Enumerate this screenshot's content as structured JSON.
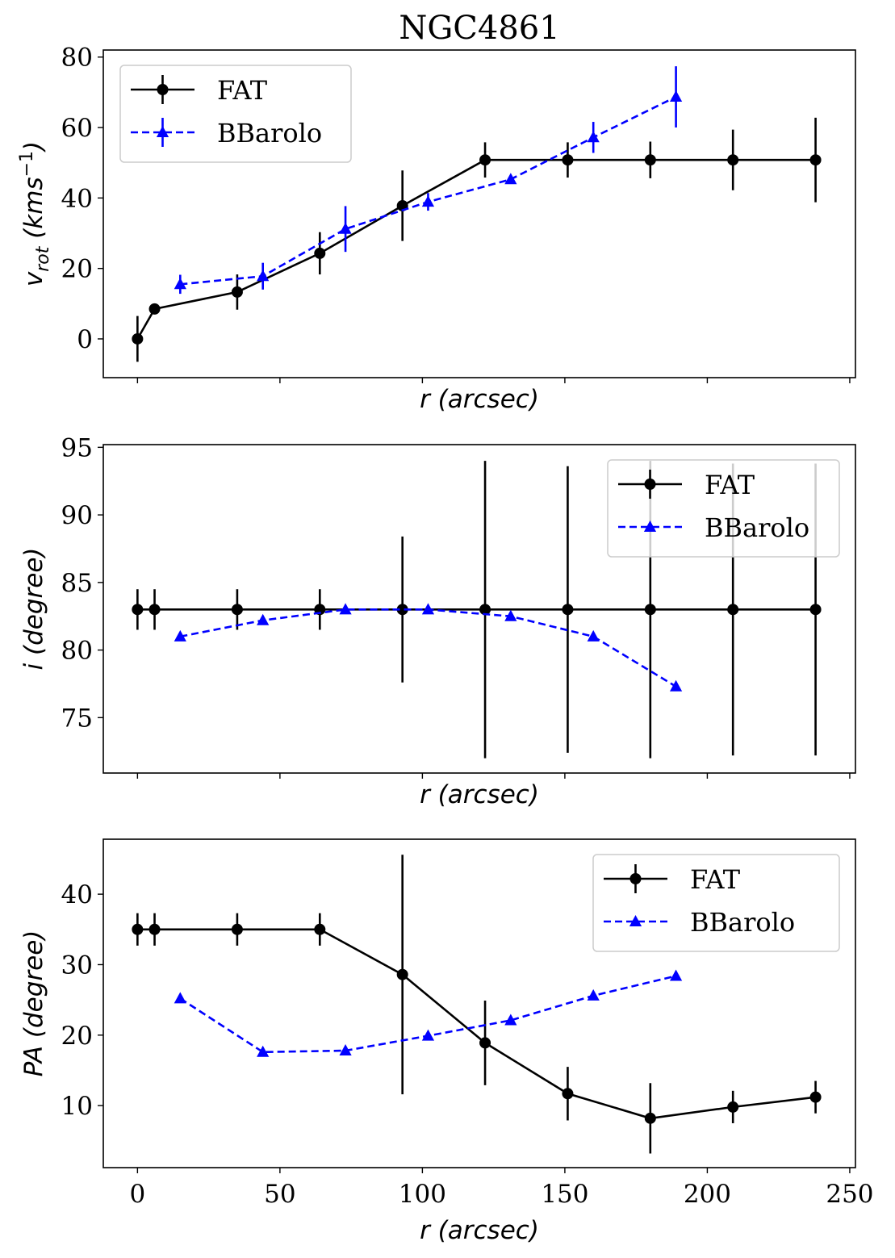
{
  "title": "NGC4861",
  "colors": {
    "fat": "#000000",
    "bbarolo": "#0000ff",
    "legend_border": "#cccccc"
  },
  "legend_labels": {
    "fat": "FAT",
    "bbarolo": "BBarolo"
  },
  "chart_data": [
    {
      "type": "line",
      "title": "NGC4861",
      "xlabel": "r (arcsec)",
      "ylabel": "v_rot (kms^-1)",
      "ylabel_parts": {
        "main": "v",
        "sub": "rot",
        "rest": " (kms",
        "sup": "−1",
        "close": ")"
      },
      "xlabel_parts": {
        "var": "r",
        "rest": " (arcsec)"
      },
      "xlim": [
        -12,
        252
      ],
      "ylim": [
        -11,
        82
      ],
      "xticks": [
        0,
        50,
        100,
        150,
        200,
        250
      ],
      "xtick_labels_visible": false,
      "yticks": [
        0,
        20,
        40,
        60,
        80
      ],
      "ytick_labels": [
        "0",
        "20",
        "40",
        "60",
        "80"
      ],
      "legend": "top-left",
      "grid": false,
      "series": [
        {
          "name": "FAT",
          "style": "solid",
          "marker": "circle",
          "x": [
            0,
            6,
            35,
            64,
            93,
            122,
            151,
            180,
            209,
            238
          ],
          "y": [
            0,
            8.5,
            13.3,
            24.3,
            37.8,
            50.8,
            50.8,
            50.8,
            50.8,
            50.8
          ],
          "err": [
            6.5,
            0,
            5,
            6,
            10,
            5,
            5,
            5.2,
            8.6,
            12
          ]
        },
        {
          "name": "BBarolo",
          "style": "dashed",
          "marker": "triangle",
          "x": [
            15,
            44,
            73,
            102,
            131,
            160,
            189
          ],
          "y": [
            15.5,
            17.8,
            31.2,
            38.9,
            45.3,
            57.2,
            68.7
          ],
          "err": [
            2.7,
            3.8,
            6.5,
            2.5,
            1.2,
            4.4,
            8.7
          ]
        }
      ]
    },
    {
      "type": "line",
      "xlabel": "r (arcsec)",
      "ylabel": "i (degree)",
      "ylabel_parts": {
        "var": "i",
        "rest": " (degree)"
      },
      "xlabel_parts": {
        "var": "r",
        "rest": " (arcsec)"
      },
      "xlim": [
        -12,
        252
      ],
      "ylim": [
        70.9,
        95.2
      ],
      "xticks": [
        0,
        50,
        100,
        150,
        200,
        250
      ],
      "xtick_labels_visible": false,
      "yticks": [
        75,
        80,
        85,
        90,
        95
      ],
      "ytick_labels": [
        "75",
        "80",
        "85",
        "90",
        "95"
      ],
      "legend": "top-right",
      "grid": false,
      "series": [
        {
          "name": "FAT",
          "style": "solid",
          "marker": "circle",
          "x": [
            0,
            6,
            35,
            64,
            93,
            122,
            151,
            180,
            209,
            238
          ],
          "y": [
            83,
            83,
            83,
            83,
            83,
            83,
            83,
            83,
            83,
            83
          ],
          "err": [
            1.5,
            1.5,
            1.5,
            1.5,
            5.4,
            11,
            10.6,
            11,
            10.8,
            10.8
          ]
        },
        {
          "name": "BBarolo",
          "style": "dashed",
          "marker": "triangle",
          "x": [
            15,
            44,
            73,
            102,
            131,
            160,
            189
          ],
          "y": [
            81,
            82.2,
            83,
            83,
            82.5,
            81,
            77.3
          ],
          "err": [
            0,
            0,
            0,
            0,
            0,
            0,
            0
          ]
        }
      ]
    },
    {
      "type": "line",
      "xlabel": "r (arcsec)",
      "ylabel": "PA (degree)",
      "ylabel_parts": {
        "var": "PA",
        "rest": " (degree)"
      },
      "xlabel_parts": {
        "var": "r",
        "rest": " (arcsec)"
      },
      "xlim": [
        -12,
        252
      ],
      "ylim": [
        1.2,
        47.8
      ],
      "xticks": [
        0,
        50,
        100,
        150,
        200,
        250
      ],
      "xtick_labels": [
        "0",
        "50",
        "100",
        "150",
        "200",
        "250"
      ],
      "xtick_labels_visible": true,
      "yticks": [
        10,
        20,
        30,
        40
      ],
      "ytick_labels": [
        "10",
        "20",
        "30",
        "40"
      ],
      "legend": "top-right",
      "grid": false,
      "series": [
        {
          "name": "FAT",
          "style": "solid",
          "marker": "circle",
          "x": [
            0,
            6,
            35,
            64,
            93,
            122,
            151,
            180,
            209,
            238
          ],
          "y": [
            35,
            35,
            35,
            35,
            28.6,
            18.9,
            11.7,
            8.2,
            9.8,
            11.2
          ],
          "err": [
            2.3,
            2.3,
            2.3,
            2.3,
            17,
            6,
            3.8,
            5,
            2.3,
            2.3
          ]
        },
        {
          "name": "BBarolo",
          "style": "dashed",
          "marker": "triangle",
          "x": [
            15,
            44,
            73,
            102,
            131,
            160,
            189
          ],
          "y": [
            25.2,
            17.6,
            17.8,
            19.9,
            22.1,
            25.6,
            28.4
          ],
          "err": [
            0,
            0,
            0,
            0,
            0,
            0,
            0
          ]
        }
      ]
    }
  ]
}
